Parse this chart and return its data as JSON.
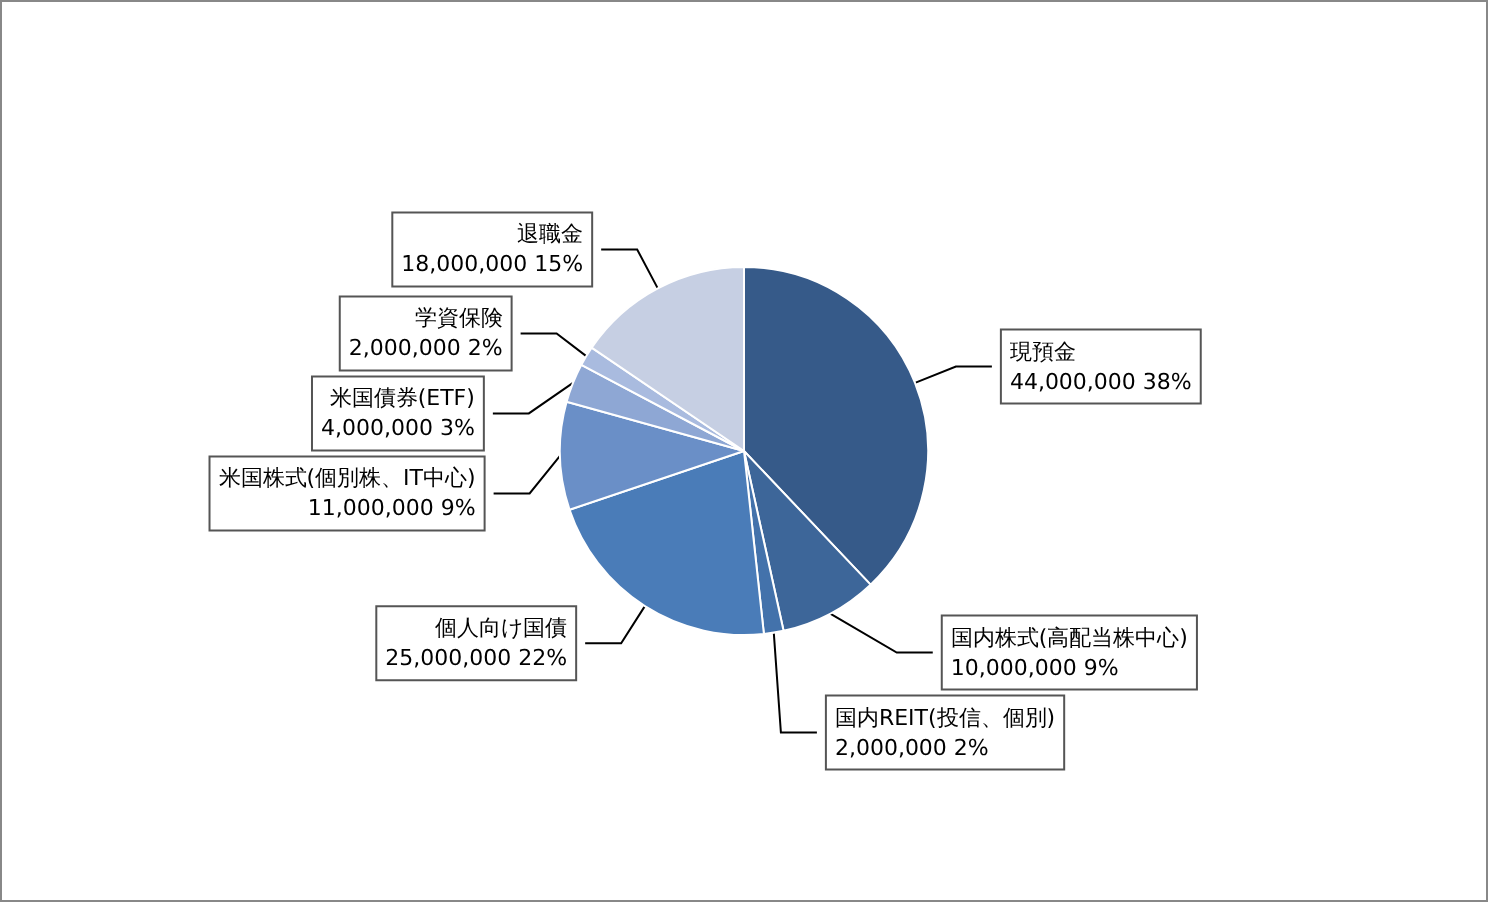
{
  "chart_data": {
    "type": "pie",
    "categories": [
      "現預金",
      "国内株式(高配当株中心)",
      "国内REIT(投信、個別)",
      "個人向け国債",
      "米国株式(個別株、IT中心)",
      "米国債券(ETF)",
      "学資保険",
      "退職金"
    ],
    "values": [
      44000000,
      10000000,
      2000000,
      25000000,
      11000000,
      4000000,
      2000000,
      18000000
    ],
    "value_labels": [
      "44,000,000 38%",
      "10,000,000 9%",
      "2,000,000 2%",
      "25,000,000 22%",
      "11,000,000 9%",
      "4,000,000 3%",
      "2,000,000 2%",
      "18,000,000 15%"
    ],
    "colors": [
      "#365a89",
      "#3d6699",
      "#4372ab",
      "#4a7cb8",
      "#6a8fc7",
      "#8ea7d4",
      "#a9bbdf",
      "#c6cfe3"
    ],
    "legend": false
  }
}
